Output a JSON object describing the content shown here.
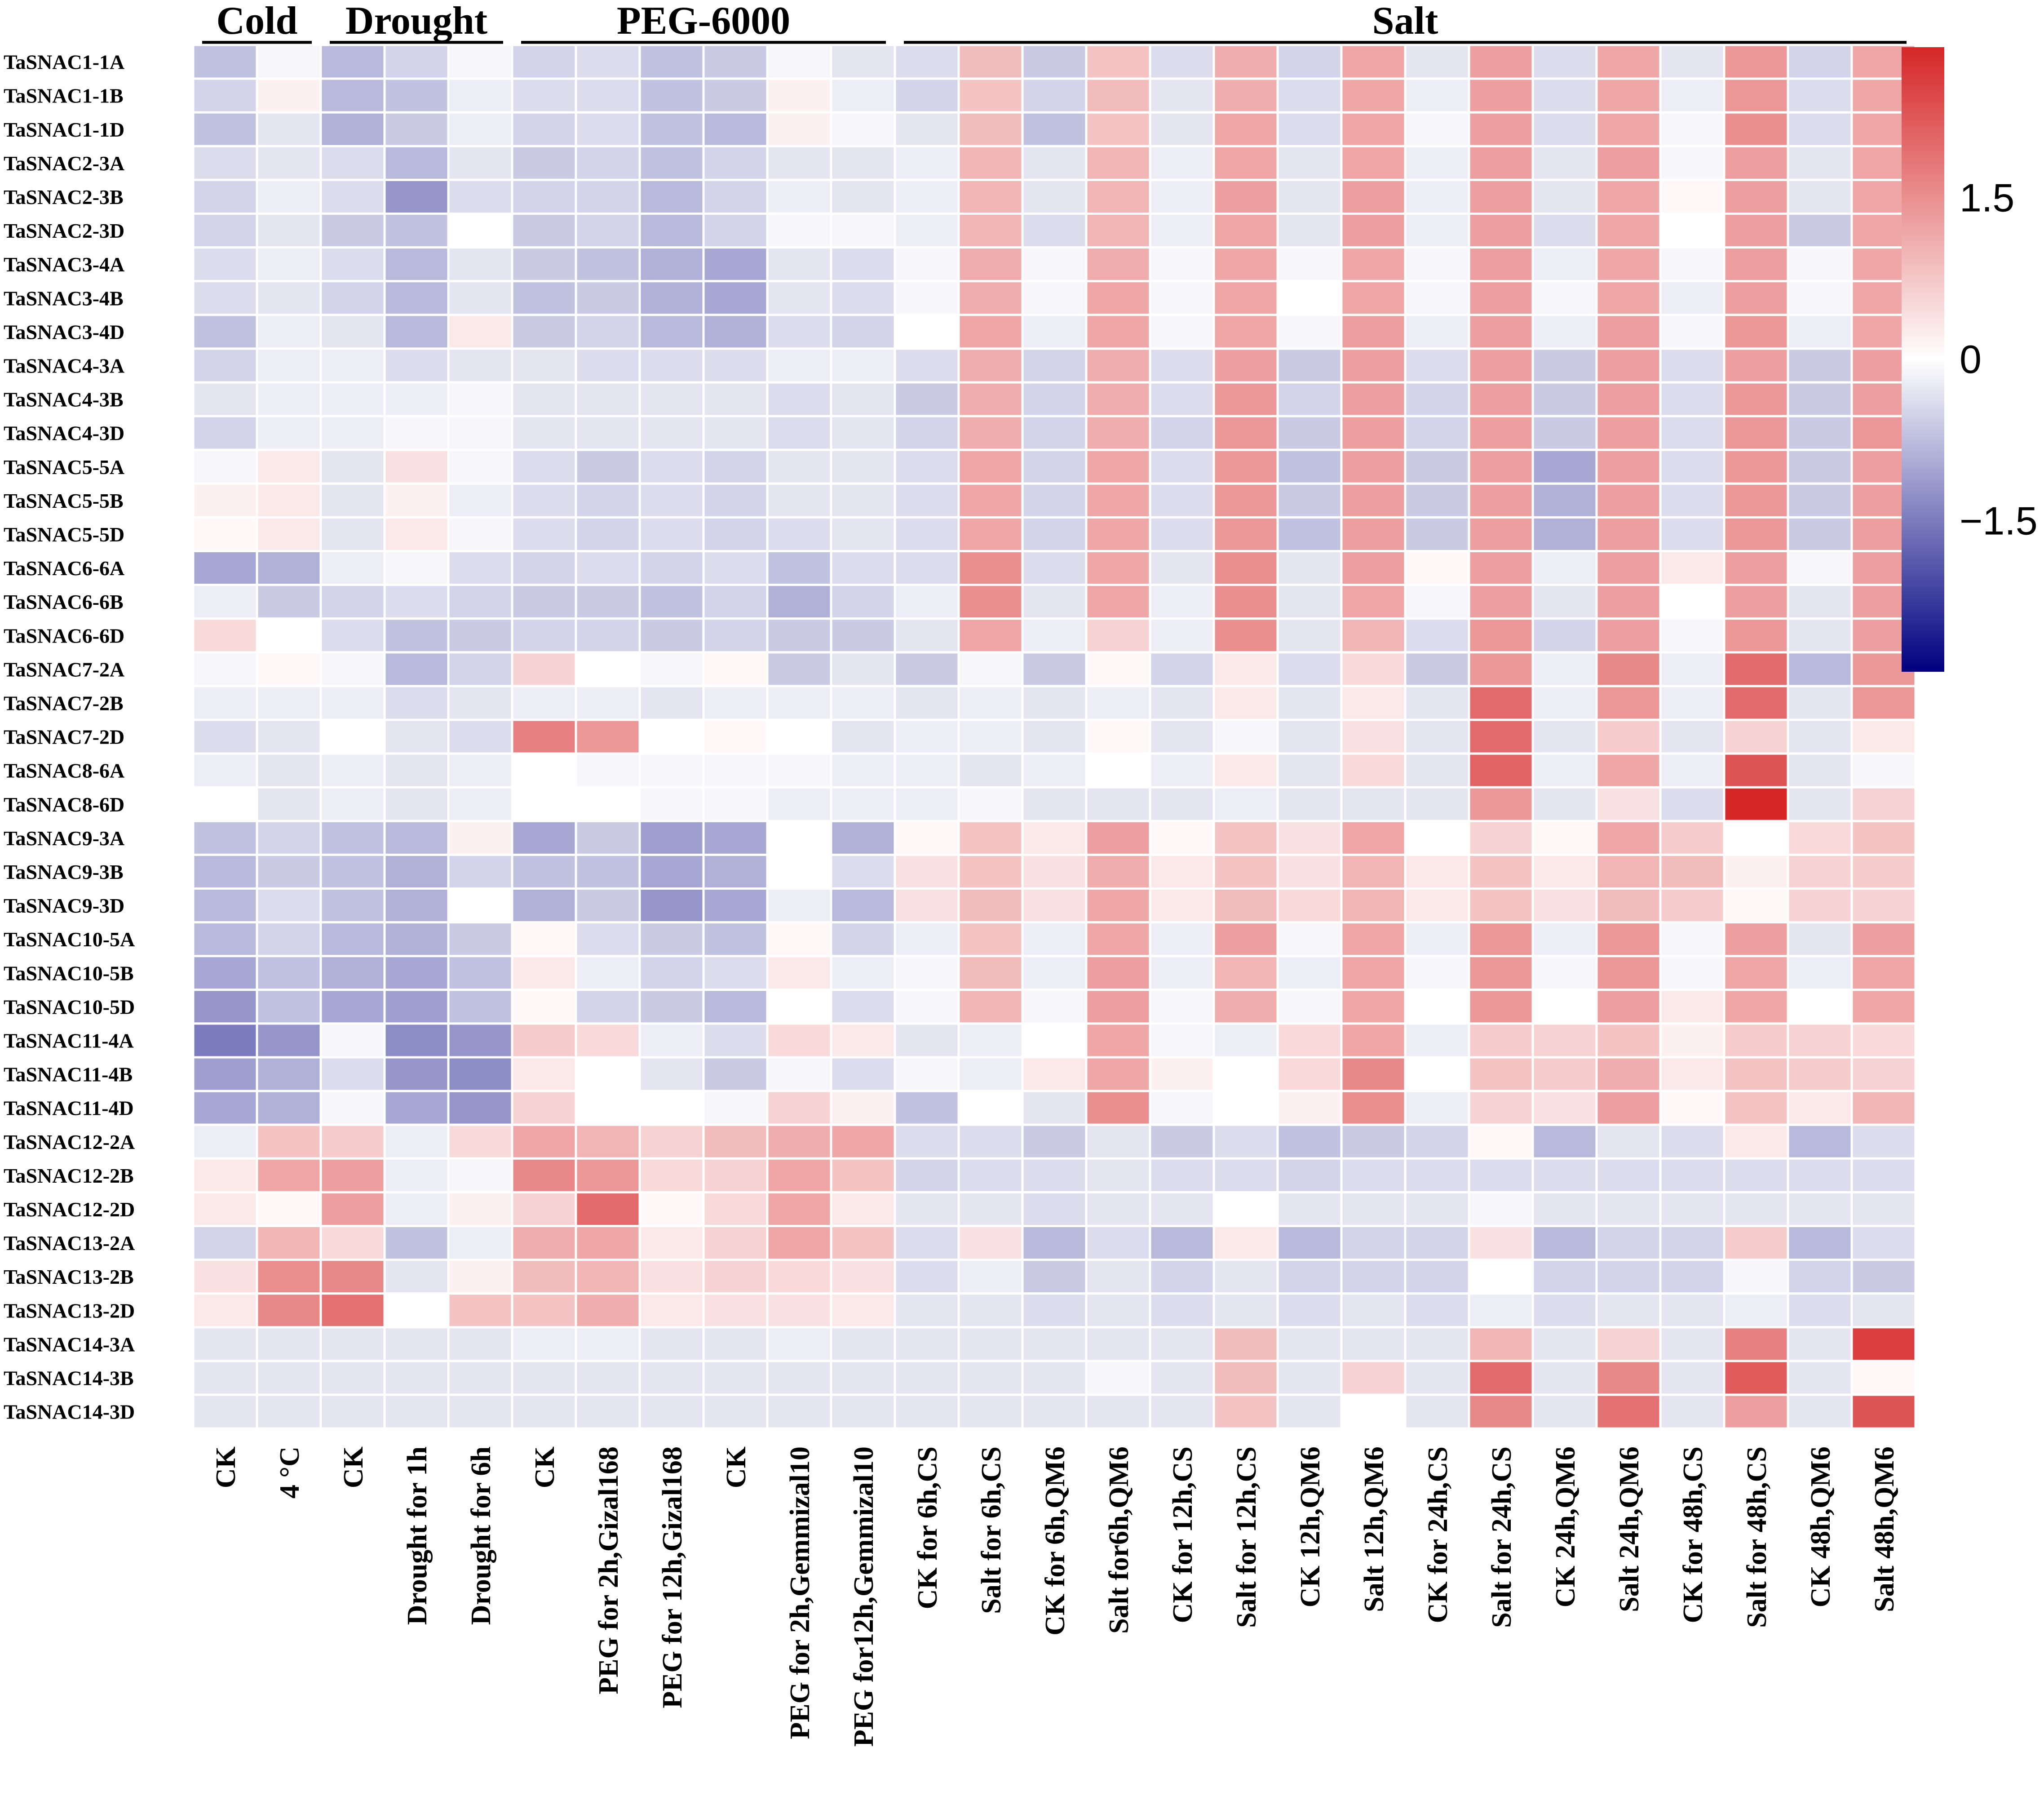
{
  "chart_data": {
    "type": "heatmap",
    "title": "",
    "xlabel": "",
    "ylabel": "",
    "color_scale": {
      "low": "#000080",
      "mid": "#ffffff",
      "high": "#d62728",
      "range": [
        -2.9,
        2.9
      ],
      "ticks": [
        {
          "value": 1.5,
          "label": "1.5"
        },
        {
          "value": 0,
          "label": "0"
        },
        {
          "value": -1.5,
          "label": "−1.5"
        }
      ]
    },
    "groups": [
      {
        "name": "Cold",
        "from": 0,
        "to": 1
      },
      {
        "name": "Drought",
        "from": 2,
        "to": 4
      },
      {
        "name": "PEG-6000",
        "from": 5,
        "to": 10
      },
      {
        "name": "Salt",
        "from": 11,
        "to": 26
      }
    ],
    "columns": [
      "CK",
      "4 °C",
      "CK",
      "Drought for 1h",
      "Drought for 6h",
      "CK",
      "PEG for 2h,Gizal168",
      "PEG for 12h,Gizal168",
      "CK",
      "PEG for 2h,Gemmizal10",
      "PEG for12h,Gemmizal10",
      "CK for 6h,CS",
      "Salt for 6h,CS",
      "CK for  6h,QM6",
      "Salt for6h,QM6",
      "CK for 12h,CS",
      "Salt for 12h,CS",
      "CK 12h,QM6",
      "Salt 12h,QM6",
      "CK for 24h,CS",
      "Salt for 24h,CS",
      "CK 24h,QM6",
      "Salt 24h,QM6",
      "CK for 48h,CS",
      "Salt for 48h,CS",
      "CK 48h,QM6",
      "Salt 48h,QM6"
    ],
    "rows": [
      "TaSNAC1-1A",
      "TaSNAC1-1B",
      "TaSNAC1-1D",
      "TaSNAC2-3A",
      "TaSNAC2-3B",
      "TaSNAC2-3D",
      "TaSNAC3-4A",
      "TaSNAC3-4B",
      "TaSNAC3-4D",
      "TaSNAC4-3A",
      "TaSNAC4-3B",
      "TaSNAC4-3D",
      "TaSNAC5-5A",
      "TaSNAC5-5B",
      "TaSNAC5-5D",
      "TaSNAC6-6A",
      "TaSNAC6-6B",
      "TaSNAC6-6D",
      "TaSNAC7-2A",
      "TaSNAC7-2B",
      "TaSNAC7-2D",
      "TaSNAC8-6A",
      "TaSNAC8-6D",
      "TaSNAC9-3A",
      "TaSNAC9-3B",
      "TaSNAC9-3D",
      "TaSNAC10-5A",
      "TaSNAC10-5B",
      "TaSNAC10-5D",
      "TaSNAC11-4A",
      "TaSNAC11-4B",
      "TaSNAC11-4D",
      "TaSNAC12-2A",
      "TaSNAC12-2B",
      "TaSNAC12-2D",
      "TaSNAC13-2A",
      "TaSNAC13-2B",
      "TaSNAC13-2D",
      "TaSNAC14-3A",
      "TaSNAC14-3B",
      "TaSNAC14-3D"
    ],
    "values": [
      [
        -0.7,
        -0.1,
        -0.8,
        -0.5,
        -0.1,
        -0.5,
        -0.4,
        -0.7,
        -0.6,
        -0.1,
        -0.3,
        -0.4,
        0.9,
        -0.6,
        0.8,
        -0.4,
        1.1,
        -0.5,
        1.2,
        -0.3,
        1.3,
        -0.4,
        1.2,
        -0.3,
        1.4,
        -0.5,
        1.2
      ],
      [
        -0.5,
        0.2,
        -0.8,
        -0.7,
        -0.2,
        -0.4,
        -0.4,
        -0.7,
        -0.6,
        0.2,
        -0.2,
        -0.5,
        0.8,
        -0.5,
        0.9,
        -0.3,
        1.1,
        -0.4,
        1.2,
        -0.2,
        1.3,
        -0.4,
        1.2,
        -0.2,
        1.4,
        -0.4,
        1.2
      ],
      [
        -0.7,
        -0.3,
        -0.9,
        -0.6,
        -0.2,
        -0.5,
        -0.4,
        -0.7,
        -0.8,
        0.2,
        -0.1,
        -0.3,
        0.9,
        -0.7,
        0.8,
        -0.3,
        1.2,
        -0.4,
        1.2,
        -0.1,
        1.3,
        -0.4,
        1.2,
        -0.1,
        1.5,
        -0.4,
        1.2
      ],
      [
        -0.4,
        -0.3,
        -0.4,
        -0.8,
        -0.3,
        -0.6,
        -0.5,
        -0.7,
        -0.5,
        -0.3,
        -0.3,
        -0.2,
        1.0,
        -0.3,
        1.0,
        -0.2,
        1.2,
        -0.3,
        1.2,
        -0.2,
        1.3,
        -0.3,
        1.3,
        -0.1,
        1.3,
        -0.3,
        1.2
      ],
      [
        -0.5,
        -0.2,
        -0.4,
        -1.2,
        -0.4,
        -0.5,
        -0.5,
        -0.8,
        -0.5,
        -0.2,
        -0.3,
        -0.2,
        1.0,
        -0.3,
        1.0,
        -0.2,
        1.3,
        -0.3,
        1.3,
        -0.2,
        1.3,
        -0.3,
        1.2,
        0.1,
        1.3,
        -0.3,
        1.2
      ],
      [
        -0.5,
        -0.3,
        -0.6,
        -0.7,
        0.0,
        -0.6,
        -0.5,
        -0.8,
        -0.5,
        -0.1,
        -0.1,
        -0.2,
        1.0,
        -0.4,
        1.0,
        -0.2,
        1.2,
        -0.3,
        1.3,
        -0.2,
        1.3,
        -0.4,
        1.2,
        0.0,
        1.3,
        -0.6,
        1.2
      ],
      [
        -0.4,
        -0.2,
        -0.4,
        -0.8,
        -0.3,
        -0.6,
        -0.7,
        -0.9,
        -1.0,
        -0.3,
        -0.4,
        -0.1,
        1.1,
        -0.1,
        1.1,
        -0.1,
        1.2,
        -0.1,
        1.2,
        -0.1,
        1.3,
        -0.2,
        1.2,
        -0.1,
        1.3,
        -0.1,
        1.2
      ],
      [
        -0.4,
        -0.3,
        -0.5,
        -0.8,
        -0.3,
        -0.7,
        -0.6,
        -0.9,
        -1.0,
        -0.3,
        -0.4,
        -0.1,
        1.1,
        -0.1,
        1.2,
        -0.1,
        1.2,
        0.0,
        1.2,
        -0.1,
        1.3,
        -0.1,
        1.2,
        -0.2,
        1.3,
        -0.1,
        1.2
      ],
      [
        -0.7,
        -0.2,
        -0.3,
        -0.8,
        0.3,
        -0.6,
        -0.5,
        -0.8,
        -0.9,
        -0.4,
        -0.5,
        0.0,
        1.2,
        -0.2,
        1.2,
        -0.1,
        1.2,
        -0.1,
        1.3,
        -0.2,
        1.3,
        -0.2,
        1.3,
        -0.1,
        1.4,
        -0.2,
        1.2
      ],
      [
        -0.5,
        -0.2,
        -0.2,
        -0.4,
        -0.3,
        -0.3,
        -0.4,
        -0.4,
        -0.4,
        -0.2,
        -0.2,
        -0.4,
        1.1,
        -0.5,
        1.1,
        -0.4,
        1.3,
        -0.6,
        1.3,
        -0.4,
        1.3,
        -0.6,
        1.3,
        -0.4,
        1.3,
        -0.6,
        1.3
      ],
      [
        -0.3,
        -0.2,
        -0.2,
        -0.2,
        -0.1,
        -0.3,
        -0.3,
        -0.3,
        -0.3,
        -0.4,
        -0.3,
        -0.6,
        1.1,
        -0.5,
        1.1,
        -0.4,
        1.4,
        -0.5,
        1.3,
        -0.5,
        1.3,
        -0.6,
        1.3,
        -0.4,
        1.4,
        -0.6,
        1.3
      ],
      [
        -0.5,
        -0.2,
        -0.2,
        -0.1,
        -0.1,
        -0.3,
        -0.3,
        -0.3,
        -0.3,
        -0.4,
        -0.3,
        -0.5,
        1.1,
        -0.5,
        1.1,
        -0.5,
        1.4,
        -0.6,
        1.3,
        -0.5,
        1.3,
        -0.6,
        1.3,
        -0.4,
        1.4,
        -0.6,
        1.4
      ],
      [
        -0.1,
        0.3,
        -0.3,
        0.4,
        -0.1,
        -0.4,
        -0.6,
        -0.4,
        -0.5,
        -0.3,
        -0.3,
        -0.4,
        1.2,
        -0.5,
        1.2,
        -0.4,
        1.4,
        -0.7,
        1.3,
        -0.6,
        1.3,
        -1.0,
        1.3,
        -0.4,
        1.4,
        -0.6,
        1.3
      ],
      [
        0.2,
        0.3,
        -0.3,
        0.2,
        -0.2,
        -0.4,
        -0.5,
        -0.4,
        -0.5,
        -0.3,
        -0.3,
        -0.4,
        1.2,
        -0.5,
        1.2,
        -0.4,
        1.4,
        -0.6,
        1.3,
        -0.6,
        1.3,
        -0.9,
        1.3,
        -0.4,
        1.4,
        -0.6,
        1.3
      ],
      [
        0.1,
        0.3,
        -0.3,
        0.3,
        -0.1,
        -0.4,
        -0.5,
        -0.4,
        -0.5,
        -0.4,
        -0.3,
        -0.4,
        1.2,
        -0.5,
        1.2,
        -0.4,
        1.4,
        -0.7,
        1.3,
        -0.6,
        1.3,
        -0.9,
        1.3,
        -0.4,
        1.4,
        -0.6,
        1.3
      ],
      [
        -1.0,
        -0.9,
        -0.2,
        -0.1,
        -0.4,
        -0.5,
        -0.4,
        -0.5,
        -0.4,
        -0.7,
        -0.4,
        -0.4,
        1.5,
        -0.4,
        1.2,
        -0.3,
        1.5,
        -0.3,
        1.3,
        0.1,
        1.3,
        -0.2,
        1.3,
        0.3,
        1.3,
        -0.1,
        1.3
      ],
      [
        -0.2,
        -0.6,
        -0.5,
        -0.4,
        -0.5,
        -0.6,
        -0.6,
        -0.7,
        -0.5,
        -0.9,
        -0.5,
        -0.2,
        1.5,
        -0.3,
        1.2,
        -0.2,
        1.5,
        -0.3,
        1.2,
        -0.1,
        1.3,
        -0.3,
        1.3,
        0.0,
        1.3,
        -0.3,
        1.3
      ],
      [
        0.5,
        0.0,
        -0.4,
        -0.7,
        -0.6,
        -0.5,
        -0.5,
        -0.6,
        -0.5,
        -0.6,
        -0.6,
        -0.3,
        1.2,
        -0.2,
        0.6,
        -0.2,
        1.5,
        -0.3,
        1.0,
        -0.4,
        1.4,
        -0.5,
        1.3,
        -0.1,
        1.4,
        -0.3,
        1.3
      ],
      [
        -0.1,
        0.1,
        -0.1,
        -0.8,
        -0.5,
        0.6,
        0.0,
        -0.1,
        0.1,
        -0.6,
        -0.3,
        -0.6,
        -0.1,
        -0.6,
        0.1,
        -0.5,
        0.3,
        -0.4,
        0.5,
        -0.6,
        1.4,
        -0.2,
        1.6,
        -0.2,
        2.0,
        -0.8,
        1.4
      ],
      [
        -0.2,
        -0.2,
        -0.2,
        -0.4,
        -0.3,
        -0.2,
        -0.2,
        -0.3,
        -0.2,
        -0.2,
        -0.2,
        -0.3,
        -0.2,
        -0.3,
        -0.2,
        -0.3,
        0.3,
        -0.3,
        0.3,
        -0.3,
        2.0,
        -0.2,
        1.4,
        -0.2,
        2.0,
        -0.3,
        1.4
      ],
      [
        -0.4,
        -0.3,
        0.0,
        -0.3,
        -0.4,
        1.7,
        1.4,
        0.0,
        0.1,
        0.0,
        -0.3,
        -0.2,
        -0.2,
        -0.3,
        0.1,
        -0.3,
        -0.1,
        -0.3,
        0.4,
        -0.3,
        2.0,
        -0.3,
        0.7,
        -0.3,
        0.6,
        -0.3,
        0.3
      ],
      [
        -0.2,
        -0.3,
        -0.2,
        -0.3,
        -0.2,
        0.0,
        -0.1,
        -0.1,
        -0.1,
        -0.1,
        -0.2,
        -0.2,
        -0.3,
        -0.2,
        0.0,
        -0.2,
        0.3,
        -0.3,
        0.5,
        -0.3,
        2.1,
        -0.2,
        1.2,
        -0.2,
        2.3,
        -0.3,
        -0.1
      ],
      [
        0.0,
        -0.3,
        -0.2,
        -0.3,
        -0.2,
        0.0,
        0.0,
        -0.1,
        -0.1,
        -0.2,
        -0.2,
        -0.2,
        -0.1,
        -0.3,
        -0.3,
        -0.3,
        -0.2,
        -0.3,
        -0.3,
        -0.3,
        1.4,
        -0.3,
        0.4,
        -0.4,
        2.9,
        -0.3,
        0.6
      ],
      [
        -0.7,
        -0.5,
        -0.7,
        -0.8,
        0.2,
        -1.0,
        -0.6,
        -1.1,
        -1.0,
        0.0,
        -0.9,
        0.1,
        0.8,
        0.3,
        1.3,
        0.1,
        0.8,
        0.4,
        1.2,
        0.0,
        0.6,
        0.1,
        1.2,
        0.7,
        0.0,
        0.5,
        0.8
      ],
      [
        -0.8,
        -0.6,
        -0.7,
        -0.9,
        -0.5,
        -0.7,
        -0.7,
        -1.0,
        -0.9,
        0.0,
        -0.4,
        0.4,
        0.8,
        0.4,
        1.1,
        0.3,
        0.8,
        0.4,
        1.0,
        0.3,
        0.8,
        0.3,
        1.0,
        0.9,
        0.2,
        0.6,
        0.7
      ],
      [
        -0.8,
        -0.4,
        -0.7,
        -0.9,
        0.0,
        -0.9,
        -0.6,
        -1.2,
        -1.0,
        -0.2,
        -0.8,
        0.4,
        0.9,
        0.4,
        1.2,
        0.3,
        0.9,
        0.5,
        1.0,
        0.3,
        0.8,
        0.4,
        0.9,
        0.7,
        0.1,
        0.6,
        0.6
      ],
      [
        -0.8,
        -0.5,
        -0.8,
        -0.9,
        -0.6,
        0.1,
        -0.4,
        -0.6,
        -0.7,
        0.1,
        -0.5,
        -0.2,
        0.8,
        -0.2,
        1.2,
        -0.2,
        1.3,
        -0.1,
        1.2,
        -0.2,
        1.4,
        -0.2,
        1.4,
        -0.1,
        1.3,
        -0.3,
        1.3
      ],
      [
        -1.0,
        -0.7,
        -0.9,
        -1.0,
        -0.7,
        0.3,
        -0.2,
        -0.5,
        -0.4,
        0.3,
        -0.2,
        -0.1,
        0.9,
        -0.2,
        1.3,
        -0.2,
        1.0,
        -0.2,
        1.2,
        -0.1,
        1.4,
        -0.1,
        1.4,
        -0.1,
        1.2,
        -0.2,
        1.2
      ],
      [
        -1.2,
        -0.7,
        -1.0,
        -1.1,
        -0.7,
        0.1,
        -0.5,
        -0.6,
        -0.8,
        0.0,
        -0.4,
        -0.1,
        1.0,
        -0.1,
        1.3,
        -0.1,
        1.1,
        -0.1,
        1.2,
        0.0,
        1.4,
        0.0,
        1.3,
        0.3,
        1.2,
        0.0,
        1.2
      ],
      [
        -1.5,
        -1.2,
        -0.1,
        -1.3,
        -1.2,
        0.7,
        0.5,
        -0.2,
        -0.4,
        0.5,
        0.3,
        -0.3,
        -0.2,
        0.0,
        1.2,
        -0.1,
        -0.2,
        0.5,
        1.2,
        -0.2,
        0.7,
        0.6,
        0.8,
        0.2,
        0.7,
        0.6,
        0.5
      ],
      [
        -1.1,
        -0.9,
        -0.4,
        -1.2,
        -1.3,
        0.3,
        0.0,
        -0.3,
        -0.6,
        -0.1,
        -0.4,
        -0.1,
        -0.2,
        0.3,
        1.2,
        0.2,
        0.0,
        0.5,
        1.6,
        0.0,
        0.8,
        0.7,
        1.1,
        0.3,
        0.8,
        0.7,
        0.6
      ],
      [
        -1.0,
        -0.9,
        -0.1,
        -1.0,
        -1.2,
        0.6,
        0.0,
        0.0,
        -0.1,
        0.6,
        0.2,
        -0.7,
        0.0,
        -0.3,
        1.5,
        -0.1,
        0.0,
        0.2,
        1.5,
        -0.2,
        0.6,
        0.4,
        1.3,
        0.1,
        0.8,
        0.3,
        1.0
      ],
      [
        -0.2,
        0.8,
        0.7,
        -0.2,
        0.5,
        1.2,
        1.0,
        0.6,
        0.9,
        1.1,
        1.2,
        -0.4,
        -0.4,
        -0.6,
        -0.3,
        -0.6,
        -0.4,
        -0.7,
        -0.6,
        -0.5,
        0.1,
        -0.8,
        -0.3,
        -0.4,
        0.3,
        -0.8,
        -0.4
      ],
      [
        0.3,
        1.2,
        1.3,
        -0.2,
        -0.1,
        1.6,
        1.4,
        0.5,
        0.6,
        1.2,
        0.8,
        -0.5,
        -0.4,
        -0.4,
        -0.3,
        -0.4,
        -0.4,
        -0.5,
        -0.4,
        -0.4,
        -0.4,
        -0.4,
        -0.4,
        -0.4,
        -0.4,
        -0.4,
        -0.4
      ],
      [
        0.3,
        0.1,
        1.3,
        -0.2,
        0.2,
        0.6,
        2.0,
        0.1,
        0.5,
        1.2,
        0.3,
        -0.3,
        -0.3,
        -0.4,
        -0.3,
        -0.3,
        0.0,
        -0.3,
        -0.3,
        -0.3,
        -0.1,
        -0.3,
        -0.3,
        -0.3,
        -0.3,
        -0.3,
        -0.3
      ],
      [
        -0.5,
        1.0,
        0.5,
        -0.7,
        -0.2,
        1.1,
        1.2,
        0.3,
        0.6,
        1.2,
        0.8,
        -0.4,
        0.4,
        -0.8,
        -0.4,
        -0.8,
        0.3,
        -0.8,
        -0.5,
        -0.5,
        0.4,
        -0.8,
        -0.5,
        -0.5,
        0.7,
        -0.8,
        -0.4
      ],
      [
        0.4,
        1.5,
        1.6,
        -0.3,
        0.2,
        0.9,
        1.0,
        0.4,
        0.6,
        0.5,
        0.4,
        -0.4,
        -0.2,
        -0.6,
        -0.3,
        -0.5,
        -0.3,
        -0.5,
        -0.5,
        -0.5,
        0.0,
        -0.5,
        -0.5,
        -0.5,
        -0.1,
        -0.5,
        -0.6
      ],
      [
        0.3,
        1.6,
        1.9,
        0.0,
        0.8,
        0.8,
        1.1,
        0.3,
        0.4,
        0.4,
        0.3,
        -0.3,
        -0.3,
        -0.4,
        -0.3,
        -0.4,
        -0.3,
        -0.4,
        -0.3,
        -0.4,
        -0.2,
        -0.4,
        -0.3,
        -0.3,
        -0.2,
        -0.4,
        -0.3
      ],
      [
        -0.3,
        -0.3,
        -0.3,
        -0.3,
        -0.3,
        -0.2,
        -0.2,
        -0.3,
        -0.3,
        -0.2,
        -0.3,
        -0.3,
        -0.3,
        -0.3,
        -0.3,
        -0.3,
        0.9,
        -0.3,
        -0.3,
        -0.3,
        1.0,
        -0.3,
        0.6,
        -0.3,
        1.7,
        -0.3,
        2.6
      ],
      [
        -0.3,
        -0.3,
        -0.3,
        -0.3,
        -0.3,
        -0.3,
        -0.3,
        -0.3,
        -0.3,
        -0.3,
        -0.3,
        -0.3,
        -0.3,
        -0.3,
        -0.1,
        -0.3,
        0.9,
        -0.3,
        0.6,
        -0.3,
        2.0,
        -0.3,
        1.6,
        -0.3,
        2.2,
        -0.3,
        0.1
      ],
      [
        -0.3,
        -0.3,
        -0.3,
        -0.3,
        -0.3,
        -0.3,
        -0.3,
        -0.3,
        -0.3,
        -0.3,
        -0.3,
        -0.3,
        -0.3,
        -0.3,
        -0.3,
        -0.3,
        0.8,
        -0.3,
        0.0,
        -0.3,
        1.6,
        -0.3,
        1.9,
        -0.3,
        1.3,
        -0.3,
        2.3
      ]
    ]
  }
}
